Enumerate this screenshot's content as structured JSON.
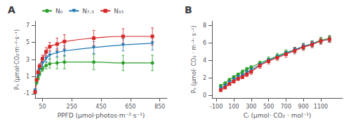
{
  "chart_data": [
    {
      "type": "line",
      "title": "A",
      "xlabel": "PPFD (μmol·photos·m⁻²·s⁻¹)",
      "ylabel": "Pₙ (µmol·CO₂·m⁻²·s⁻¹)",
      "xlim": [
        0,
        900
      ],
      "ylim": [
        -1.5,
        7.5
      ],
      "xticks": [
        50,
        250,
        450,
        650,
        850
      ],
      "yticks": [
        -1,
        1,
        3,
        5,
        7
      ],
      "grid": false,
      "legend": "upper left",
      "x": [
        0,
        10,
        20,
        30,
        50,
        75,
        100,
        150,
        200,
        400,
        600,
        800
      ],
      "series": [
        {
          "name": "N₀",
          "color": "#2ca02c",
          "marker": "circle",
          "values": [
            -0.7,
            0.3,
            0.8,
            1.3,
            1.9,
            2.3,
            2.5,
            2.6,
            2.7,
            2.7,
            2.6,
            2.6
          ],
          "yerr": [
            0.2,
            0.2,
            0.2,
            0.2,
            0.3,
            0.4,
            0.5,
            0.7,
            0.8,
            0.9,
            0.9,
            0.9
          ]
        },
        {
          "name": "N₇.₅",
          "color": "#1f77b4",
          "marker": "triangle_down",
          "values": [
            -0.6,
            0.5,
            1.2,
            1.8,
            2.5,
            3.1,
            3.5,
            3.8,
            4.0,
            4.4,
            4.7,
            4.9
          ],
          "yerr": [
            0.2,
            0.2,
            0.2,
            0.3,
            0.3,
            0.4,
            0.4,
            0.5,
            0.6,
            0.7,
            0.7,
            0.8
          ]
        },
        {
          "name": "N₁₅",
          "color": "#d62728",
          "marker": "square",
          "values": [
            -0.8,
            0.6,
            1.5,
            2.2,
            3.1,
            3.9,
            4.5,
            4.8,
            5.1,
            5.5,
            5.7,
            5.7
          ],
          "yerr": [
            0.2,
            0.2,
            0.3,
            0.3,
            0.4,
            0.5,
            0.5,
            0.7,
            0.8,
            0.9,
            0.9,
            1.0
          ]
        }
      ]
    },
    {
      "type": "line",
      "title": "B",
      "xlabel": "Cᵢ (μmol· CO₂ · mol⁻¹)",
      "ylabel": "Pₙ (µmol· CO₂ · m⁻²· s⁻¹)",
      "xlim": [
        -150,
        1350
      ],
      "ylim": [
        -0.3,
        8.5
      ],
      "xticks": [
        -100,
        100,
        300,
        500,
        700,
        900,
        1100
      ],
      "yticks": [
        0,
        2,
        4,
        6,
        8
      ],
      "grid": false,
      "x": [
        -50,
        0,
        50,
        100,
        150,
        200,
        250,
        300,
        400,
        500,
        600,
        700,
        800,
        900,
        1000,
        1100,
        1200
      ],
      "series": [
        {
          "name": "N₀",
          "color": "#2ca02c",
          "marker": "circle",
          "values": [
            1.1,
            1.4,
            1.8,
            2.1,
            2.4,
            2.7,
            3.0,
            3.2,
            3.7,
            4.1,
            4.5,
            4.9,
            5.2,
            5.6,
            5.9,
            6.3,
            6.5
          ],
          "yerr": [
            0.1,
            0.1,
            0.1,
            0.15,
            0.15,
            0.2,
            0.2,
            0.2,
            0.2,
            0.3,
            0.3,
            0.3,
            0.3,
            0.35,
            0.35,
            0.35,
            0.35
          ]
        },
        {
          "name": "N₇.₅",
          "color": "#1f77b4",
          "marker": "triangle_down",
          "values": [
            0.8,
            1.1,
            1.5,
            1.8,
            2.1,
            2.3,
            2.6,
            2.9,
            3.5,
            4.0,
            4.4,
            4.8,
            5.2,
            5.6,
            5.9,
            6.2,
            6.4
          ],
          "yerr": [
            0.1,
            0.1,
            0.1,
            0.15,
            0.15,
            0.15,
            0.2,
            0.2,
            0.2,
            0.25,
            0.25,
            0.25,
            0.3,
            0.3,
            0.3,
            0.3,
            0.3
          ]
        },
        {
          "name": "N₁₅",
          "color": "#d62728",
          "marker": "square",
          "values": [
            0.6,
            0.9,
            1.3,
            1.6,
            1.9,
            2.1,
            2.4,
            2.7,
            3.4,
            3.9,
            4.3,
            4.7,
            5.1,
            5.5,
            5.8,
            6.2,
            6.4
          ],
          "yerr": [
            0.15,
            0.15,
            0.15,
            0.2,
            0.2,
            0.2,
            0.25,
            0.3,
            0.3,
            0.3,
            0.3,
            0.35,
            0.35,
            0.35,
            0.35,
            0.35,
            0.35
          ]
        }
      ]
    }
  ]
}
